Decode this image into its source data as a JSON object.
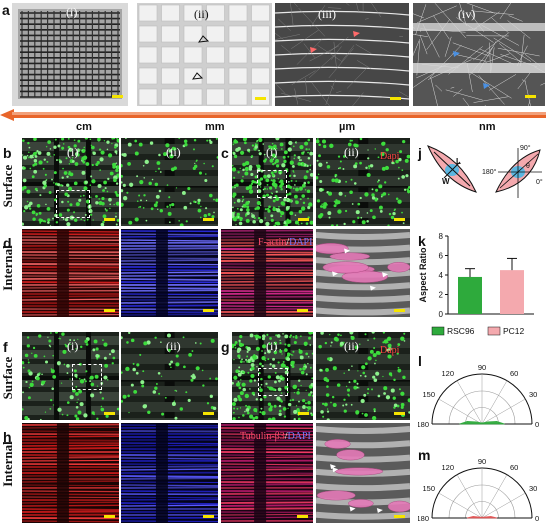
{
  "panels": {
    "a": {
      "label": "a",
      "sub": [
        "(i)",
        "(ii)",
        "(iii)",
        "(iv)"
      ],
      "scale": [
        "cm",
        "mm",
        "µm",
        "nm"
      ]
    },
    "b": {
      "label": "b",
      "sub": [
        "(i)",
        "(ii)"
      ]
    },
    "c": {
      "label": "c",
      "sub": [
        "(i)",
        "(ii)"
      ],
      "stain": "Dapi"
    },
    "d": {
      "label": "d",
      "stain_red": "F-actin",
      "stain_sep": "/",
      "stain_blue": "DAPI"
    },
    "e": {
      "label": "e"
    },
    "f": {
      "label": "f",
      "sub": [
        "(i)",
        "(ii)"
      ]
    },
    "g": {
      "label": "g",
      "sub": [
        "(i)",
        "(ii)"
      ],
      "stain": "Dapi"
    },
    "h": {
      "label": "h",
      "stain_red": "Tubulin-β3",
      "stain_sep": "/",
      "stain_blue": "DAPI"
    },
    "i": {
      "label": "i"
    },
    "j": {
      "label": "j",
      "left_labels": [
        "L",
        "W"
      ],
      "right_labels": [
        "90°",
        "180°",
        "0°",
        "θ"
      ]
    },
    "k": {
      "label": "k"
    },
    "l": {
      "label": "l"
    },
    "m": {
      "label": "m"
    }
  },
  "row_labels": {
    "surface": "Surface",
    "internal": "Internal"
  },
  "colors": {
    "rsc96": "#2eaa3c",
    "pc12": "#f4a9ae",
    "scalebar": "#f5e400",
    "arrow": "#e8652a"
  },
  "chart_data": [
    {
      "type": "bar",
      "panel": "k",
      "categories": [
        "RSC96",
        "PC12"
      ],
      "values": [
        3.8,
        4.5
      ],
      "errors": [
        0.85,
        1.2
      ],
      "ylabel": "Aspect Ratio",
      "ylim": [
        0,
        8
      ],
      "yticks": [
        0,
        2,
        4,
        6,
        8
      ],
      "legend": [
        "RSC96",
        "PC12"
      ],
      "legend_position": "bottom"
    },
    {
      "type": "area",
      "panel": "l",
      "polar": true,
      "series_name": "RSC96",
      "theta_ticks": [
        "0",
        "30",
        "60",
        "90",
        "120",
        "150",
        "180"
      ],
      "theta": [
        0,
        10,
        20,
        30,
        40,
        50,
        60,
        70,
        80,
        90,
        100,
        110,
        120,
        130,
        140,
        150,
        160,
        170,
        180
      ],
      "r": [
        0.45,
        0.3,
        0.12,
        0.06,
        0.04,
        0.03,
        0.03,
        0.02,
        0.02,
        0.02,
        0.02,
        0.02,
        0.03,
        0.03,
        0.04,
        0.06,
        0.12,
        0.3,
        0.45
      ]
    },
    {
      "type": "area",
      "panel": "m",
      "polar": true,
      "series_name": "PC12",
      "theta_ticks": [
        "0",
        "30",
        "60",
        "90",
        "120",
        "150",
        "180"
      ],
      "theta": [
        0,
        10,
        20,
        30,
        40,
        50,
        60,
        70,
        80,
        90,
        100,
        110,
        120,
        130,
        140,
        150,
        160,
        170,
        180
      ],
      "r": [
        0.3,
        0.18,
        0.06,
        0.03,
        0.02,
        0.02,
        0.02,
        0.02,
        0.02,
        0.02,
        0.02,
        0.02,
        0.02,
        0.02,
        0.02,
        0.03,
        0.06,
        0.18,
        0.3
      ]
    }
  ]
}
